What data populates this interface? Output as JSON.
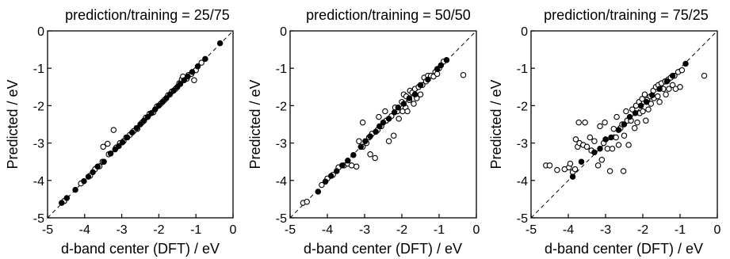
{
  "figure": {
    "panels": [
      {
        "title": "prediction/training = 25/75",
        "xlabel": "d-band center (DFT) / eV",
        "ylabel": "Predicted / eV"
      },
      {
        "title": "prediction/training = 50/50",
        "xlabel": "d-band center (DFT) / eV",
        "ylabel": "Predicted / eV"
      },
      {
        "title": "prediction/training = 75/25",
        "xlabel": "d-band center (DFT) / eV",
        "ylabel": "Predicted / eV"
      }
    ]
  },
  "chart_data": [
    {
      "type": "scatter",
      "title": "prediction/training = 25/75",
      "xlabel": "d-band center (DFT) / eV",
      "ylabel": "Predicted / eV",
      "xlim": [
        -5,
        0
      ],
      "ylim": [
        -5,
        0
      ],
      "xticks": [
        "-5",
        "-4",
        "-3",
        "-2",
        "-1",
        "0"
      ],
      "yticks": [
        "-5",
        "-4",
        "-3",
        "-2",
        "-1",
        "0"
      ],
      "reference_line": {
        "style": "dashed",
        "from": [
          -5,
          -5
        ],
        "to": [
          0,
          0
        ]
      },
      "series": [
        {
          "marker": "filled-circle",
          "points": [
            [
              -4.62,
              -4.6
            ],
            [
              -4.48,
              -4.47
            ],
            [
              -4.25,
              -4.25
            ],
            [
              -4.02,
              -4.02
            ],
            [
              -3.9,
              -3.9
            ],
            [
              -3.78,
              -3.78
            ],
            [
              -3.65,
              -3.63
            ],
            [
              -3.48,
              -3.5
            ],
            [
              -3.3,
              -3.28
            ],
            [
              -3.18,
              -3.17
            ],
            [
              -3.08,
              -3.08
            ],
            [
              -2.98,
              -2.98
            ],
            [
              -2.85,
              -2.85
            ],
            [
              -2.72,
              -2.72
            ],
            [
              -2.6,
              -2.6
            ],
            [
              -2.5,
              -2.5
            ],
            [
              -2.4,
              -2.4
            ],
            [
              -2.3,
              -2.3
            ],
            [
              -2.2,
              -2.2
            ],
            [
              -2.1,
              -2.1
            ],
            [
              -2.0,
              -2.0
            ],
            [
              -1.9,
              -1.9
            ],
            [
              -1.8,
              -1.8
            ],
            [
              -1.7,
              -1.7
            ],
            [
              -1.6,
              -1.6
            ],
            [
              -1.5,
              -1.5
            ],
            [
              -1.42,
              -1.42
            ],
            [
              -1.32,
              -1.32
            ],
            [
              -1.22,
              -1.22
            ],
            [
              -1.1,
              -1.1
            ],
            [
              -0.95,
              -0.95
            ],
            [
              -0.75,
              -0.75
            ],
            [
              -0.35,
              -0.33
            ]
          ]
        },
        {
          "marker": "open-circle",
          "points": [
            [
              -4.55,
              -4.55
            ],
            [
              -4.1,
              -4.08
            ],
            [
              -3.85,
              -3.87
            ],
            [
              -3.72,
              -3.7
            ],
            [
              -3.6,
              -3.62
            ],
            [
              -3.52,
              -3.5
            ],
            [
              -3.5,
              -3.1
            ],
            [
              -3.35,
              -3.3
            ],
            [
              -3.38,
              -3.02
            ],
            [
              -3.22,
              -2.65
            ],
            [
              -3.15,
              -3.12
            ],
            [
              -3.05,
              -3.0
            ],
            [
              -2.95,
              -2.95
            ],
            [
              -2.88,
              -2.85
            ],
            [
              -2.78,
              -2.78
            ],
            [
              -2.68,
              -2.68
            ],
            [
              -2.58,
              -2.62
            ],
            [
              -2.45,
              -2.45
            ],
            [
              -2.35,
              -2.32
            ],
            [
              -2.25,
              -2.22
            ],
            [
              -2.15,
              -2.18
            ],
            [
              -2.05,
              -2.02
            ],
            [
              -1.95,
              -1.95
            ],
            [
              -1.85,
              -1.85
            ],
            [
              -1.75,
              -1.72
            ],
            [
              -1.65,
              -1.62
            ],
            [
              -1.55,
              -1.55
            ],
            [
              -1.45,
              -1.4
            ],
            [
              -1.38,
              -1.3
            ],
            [
              -1.35,
              -1.22
            ],
            [
              -1.25,
              -1.28
            ],
            [
              -1.2,
              -1.18
            ],
            [
              -1.12,
              -1.15
            ],
            [
              -1.05,
              -1.32
            ],
            [
              -1.0,
              -1.05
            ],
            [
              -0.85,
              -0.85
            ]
          ]
        }
      ]
    },
    {
      "type": "scatter",
      "title": "prediction/training = 50/50",
      "xlabel": "d-band center (DFT) / eV",
      "ylabel": "Predicted / eV",
      "xlim": [
        -5,
        0
      ],
      "ylim": [
        -5,
        0
      ],
      "xticks": [
        "-5",
        "-4",
        "-3",
        "-2",
        "-1",
        "0"
      ],
      "yticks": [
        "-5",
        "-4",
        "-3",
        "-2",
        "-1",
        "0"
      ],
      "reference_line": {
        "style": "dashed",
        "from": [
          -5,
          -5
        ],
        "to": [
          0,
          0
        ]
      },
      "series": [
        {
          "marker": "filled-circle",
          "points": [
            [
              -4.25,
              -4.3
            ],
            [
              -4.05,
              -4.03
            ],
            [
              -3.9,
              -3.88
            ],
            [
              -3.75,
              -3.75
            ],
            [
              -3.6,
              -3.6
            ],
            [
              -3.45,
              -3.47
            ],
            [
              -3.3,
              -3.32
            ],
            [
              -3.1,
              -3.1
            ],
            [
              -2.98,
              -2.95
            ],
            [
              -2.85,
              -2.82
            ],
            [
              -2.7,
              -2.7
            ],
            [
              -2.6,
              -2.55
            ],
            [
              -2.5,
              -2.45
            ],
            [
              -2.35,
              -2.35
            ],
            [
              -2.2,
              -2.18
            ],
            [
              -2.1,
              -2.05
            ],
            [
              -1.95,
              -1.95
            ],
            [
              -1.8,
              -1.8
            ],
            [
              -1.65,
              -1.7
            ],
            [
              -1.5,
              -1.45
            ],
            [
              -1.3,
              -1.3
            ],
            [
              -1.05,
              -1.02
            ],
            [
              -0.95,
              -0.92
            ],
            [
              -0.8,
              -0.78
            ]
          ]
        },
        {
          "marker": "open-circle",
          "points": [
            [
              -4.65,
              -4.6
            ],
            [
              -4.55,
              -4.57
            ],
            [
              -4.15,
              -4.12
            ],
            [
              -4.0,
              -3.95
            ],
            [
              -3.85,
              -3.85
            ],
            [
              -3.7,
              -3.65
            ],
            [
              -3.55,
              -3.6
            ],
            [
              -3.45,
              -3.55
            ],
            [
              -3.35,
              -3.6
            ],
            [
              -3.22,
              -3.63
            ],
            [
              -3.15,
              -2.95
            ],
            [
              -3.05,
              -3.1
            ],
            [
              -3.05,
              -2.45
            ],
            [
              -2.95,
              -3.0
            ],
            [
              -2.88,
              -2.85
            ],
            [
              -2.85,
              -3.3
            ],
            [
              -2.8,
              -2.75
            ],
            [
              -2.72,
              -3.4
            ],
            [
              -2.65,
              -2.65
            ],
            [
              -2.62,
              -2.3
            ],
            [
              -2.55,
              -2.55
            ],
            [
              -2.45,
              -2.15
            ],
            [
              -2.42,
              -2.4
            ],
            [
              -2.35,
              -2.95
            ],
            [
              -2.28,
              -2.28
            ],
            [
              -2.22,
              -2.8
            ],
            [
              -2.18,
              -2.05
            ],
            [
              -2.12,
              -2.15
            ],
            [
              -2.08,
              -2.35
            ],
            [
              -2.0,
              -1.9
            ],
            [
              -1.98,
              -2.15
            ],
            [
              -1.95,
              -1.7
            ],
            [
              -1.9,
              -2.05
            ],
            [
              -1.88,
              -1.75
            ],
            [
              -1.85,
              -2.15
            ],
            [
              -1.8,
              -1.85
            ],
            [
              -1.78,
              -1.6
            ],
            [
              -1.72,
              -1.65
            ],
            [
              -1.68,
              -1.95
            ],
            [
              -1.65,
              -1.55
            ],
            [
              -1.6,
              -1.8
            ],
            [
              -1.55,
              -1.5
            ],
            [
              -1.5,
              -1.7
            ],
            [
              -1.45,
              -1.45
            ],
            [
              -1.4,
              -1.25
            ],
            [
              -1.35,
              -1.35
            ],
            [
              -1.3,
              -1.2
            ],
            [
              -1.22,
              -1.2
            ],
            [
              -1.15,
              -1.22
            ],
            [
              -1.1,
              -1.1
            ],
            [
              -1.05,
              -1.15
            ],
            [
              -1.0,
              -1.0
            ],
            [
              -0.88,
              -0.82
            ],
            [
              -0.35,
              -1.18
            ]
          ]
        }
      ]
    },
    {
      "type": "scatter",
      "title": "prediction/training = 75/25",
      "xlabel": "d-band center (DFT) / eV",
      "ylabel": "Predicted / eV",
      "xlim": [
        -5,
        0
      ],
      "ylim": [
        -5,
        0
      ],
      "xticks": [
        "-5",
        "-4",
        "-3",
        "-2",
        "-1",
        "0"
      ],
      "yticks": [
        "-5",
        "-4",
        "-3",
        "-2",
        "-1",
        "0"
      ],
      "reference_line": {
        "style": "dashed",
        "from": [
          -5,
          -5
        ],
        "to": [
          0,
          0
        ]
      },
      "series": [
        {
          "marker": "filled-circle",
          "points": [
            [
              -3.88,
              -3.9
            ],
            [
              -3.65,
              -3.5
            ],
            [
              -3.3,
              -3.25
            ],
            [
              -3.15,
              -3.15
            ],
            [
              -3.0,
              -2.9
            ],
            [
              -2.85,
              -2.85
            ],
            [
              -2.65,
              -2.65
            ],
            [
              -2.5,
              -2.5
            ],
            [
              -2.35,
              -2.3
            ],
            [
              -2.2,
              -2.2
            ],
            [
              -2.05,
              -2.0
            ],
            [
              -1.9,
              -1.9
            ],
            [
              -1.75,
              -1.72
            ],
            [
              -1.55,
              -1.55
            ],
            [
              -1.35,
              -1.35
            ],
            [
              -1.2,
              -1.2
            ],
            [
              -0.85,
              -0.88
            ]
          ]
        },
        {
          "marker": "open-circle",
          "points": [
            [
              -4.6,
              -3.6
            ],
            [
              -4.5,
              -3.6
            ],
            [
              -4.3,
              -3.72
            ],
            [
              -4.1,
              -3.7
            ],
            [
              -3.98,
              -3.65
            ],
            [
              -3.95,
              -3.55
            ],
            [
              -3.88,
              -3.78
            ],
            [
              -3.82,
              -3.7
            ],
            [
              -3.8,
              -2.9
            ],
            [
              -3.75,
              -3.1
            ],
            [
              -3.72,
              -2.45
            ],
            [
              -3.7,
              -3.0
            ],
            [
              -3.6,
              -3.05
            ],
            [
              -3.55,
              -2.45
            ],
            [
              -3.5,
              -3.1
            ],
            [
              -3.42,
              -2.85
            ],
            [
              -3.38,
              -3.2
            ],
            [
              -3.3,
              -2.95
            ],
            [
              -3.2,
              -3.6
            ],
            [
              -3.15,
              -2.55
            ],
            [
              -3.1,
              -3.45
            ],
            [
              -3.05,
              -3.0
            ],
            [
              -3.02,
              -2.45
            ],
            [
              -2.95,
              -3.15
            ],
            [
              -2.88,
              -3.75
            ],
            [
              -2.82,
              -3.15
            ],
            [
              -2.78,
              -2.62
            ],
            [
              -2.72,
              -2.85
            ],
            [
              -2.7,
              -2.3
            ],
            [
              -2.65,
              -3.05
            ],
            [
              -2.6,
              -2.6
            ],
            [
              -2.55,
              -2.5
            ],
            [
              -2.52,
              -3.75
            ],
            [
              -2.5,
              -2.8
            ],
            [
              -2.45,
              -2.15
            ],
            [
              -2.42,
              -2.4
            ],
            [
              -2.38,
              -3.05
            ],
            [
              -2.32,
              -2.4
            ],
            [
              -2.28,
              -2.1
            ],
            [
              -2.22,
              -2.6
            ],
            [
              -2.18,
              -2.0
            ],
            [
              -2.15,
              -2.45
            ],
            [
              -2.1,
              -1.9
            ],
            [
              -2.08,
              -2.2
            ],
            [
              -2.02,
              -1.82
            ],
            [
              -2.0,
              -2.15
            ],
            [
              -1.95,
              -1.7
            ],
            [
              -1.92,
              -2.4
            ],
            [
              -1.88,
              -1.85
            ],
            [
              -1.85,
              -2.1
            ],
            [
              -1.8,
              -1.75
            ],
            [
              -1.78,
              -1.95
            ],
            [
              -1.72,
              -1.6
            ],
            [
              -1.7,
              -1.8
            ],
            [
              -1.65,
              -1.5
            ],
            [
              -1.6,
              -1.75
            ],
            [
              -1.58,
              -1.45
            ],
            [
              -1.55,
              -1.9
            ],
            [
              -1.5,
              -1.4
            ],
            [
              -1.45,
              -1.55
            ],
            [
              -1.4,
              -1.35
            ],
            [
              -1.38,
              -1.7
            ],
            [
              -1.32,
              -1.3
            ],
            [
              -1.3,
              -1.55
            ],
            [
              -1.25,
              -1.25
            ],
            [
              -1.2,
              -1.45
            ],
            [
              -1.15,
              -1.2
            ],
            [
              -1.12,
              -1.55
            ],
            [
              -1.05,
              -1.1
            ],
            [
              -1.0,
              -1.5
            ],
            [
              -0.95,
              -1.05
            ],
            [
              -0.35,
              -1.2
            ]
          ]
        }
      ]
    }
  ]
}
